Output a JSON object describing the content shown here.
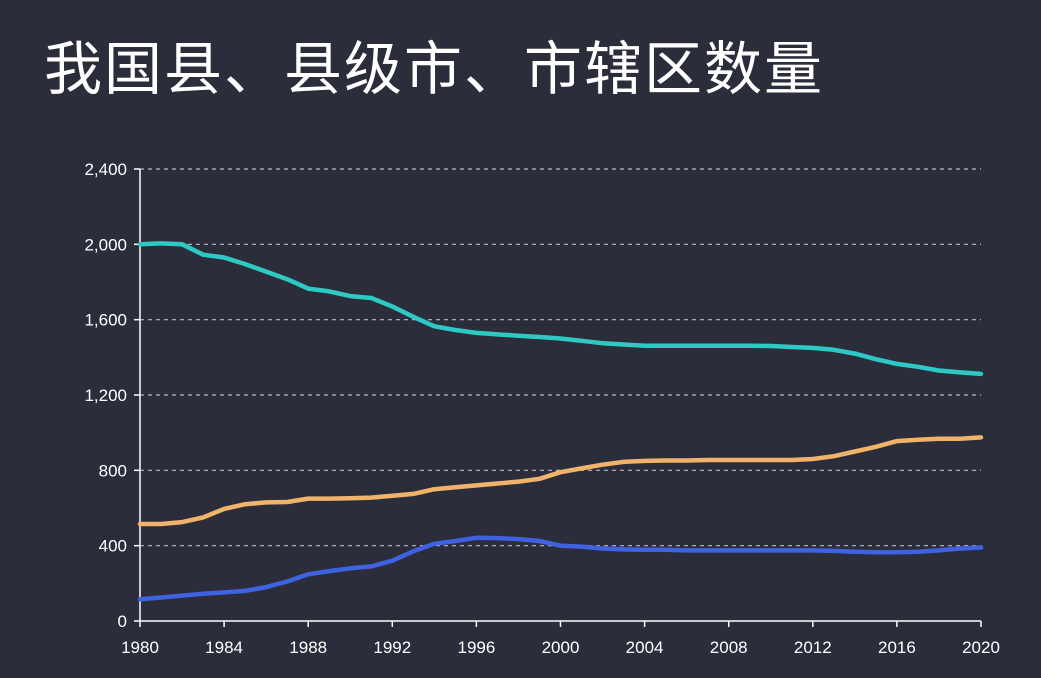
{
  "title": "我国县、县级市、市辖区数量",
  "colors": {
    "background": "#2b2d3b",
    "series_counties": "#2ec9c4",
    "series_county_cities": "#f0b36a",
    "series_districts": "#3f62e0",
    "grid": "#cfd2dc"
  },
  "chart_data": {
    "type": "line",
    "title": "我国县、县级市、市辖区数量",
    "xlabel": "",
    "ylabel": "",
    "xlim": [
      1980,
      2020
    ],
    "ylim": [
      0,
      2400
    ],
    "grid": true,
    "x_ticks": [
      "1980",
      "1984",
      "1988",
      "1992",
      "1996",
      "2000",
      "2004",
      "2008",
      "2012",
      "2016",
      "2020"
    ],
    "y_ticks": [
      "0",
      "400",
      "800",
      "1,200",
      "1,600",
      "2,000",
      "2,400"
    ],
    "x": [
      1980,
      1981,
      1982,
      1983,
      1984,
      1985,
      1986,
      1987,
      1988,
      1989,
      1990,
      1991,
      1992,
      1993,
      1994,
      1995,
      1996,
      1997,
      1998,
      1999,
      2000,
      2001,
      2002,
      2003,
      2004,
      2005,
      2006,
      2007,
      2008,
      2009,
      2010,
      2011,
      2012,
      2013,
      2014,
      2015,
      2016,
      2017,
      2018,
      2019,
      2020
    ],
    "series": [
      {
        "values": [
          2000,
          2005,
          2000,
          1945,
          1930,
          1895,
          1855,
          1815,
          1765,
          1750,
          1725,
          1715,
          1670,
          1615,
          1565,
          1545,
          1530,
          1522,
          1515,
          1508,
          1500,
          1488,
          1475,
          1468,
          1462,
          1462,
          1462,
          1462,
          1462,
          1462,
          1460,
          1455,
          1450,
          1440,
          1420,
          1390,
          1365,
          1350,
          1330,
          1320,
          1312
        ]
      },
      {
        "values": [
          515,
          515,
          525,
          550,
          595,
          620,
          630,
          632,
          650,
          650,
          652,
          655,
          665,
          675,
          700,
          710,
          720,
          730,
          740,
          755,
          790,
          810,
          830,
          845,
          850,
          852,
          852,
          855,
          855,
          855,
          855,
          855,
          860,
          875,
          900,
          925,
          955,
          962,
          968,
          968,
          975
        ]
      },
      {
        "values": [
          115,
          125,
          135,
          145,
          152,
          160,
          180,
          210,
          248,
          265,
          280,
          290,
          320,
          370,
          410,
          425,
          442,
          440,
          435,
          425,
          400,
          395,
          385,
          380,
          378,
          378,
          375,
          375,
          375,
          375,
          375,
          375,
          375,
          372,
          368,
          365,
          365,
          368,
          375,
          385,
          390
        ]
      }
    ]
  }
}
